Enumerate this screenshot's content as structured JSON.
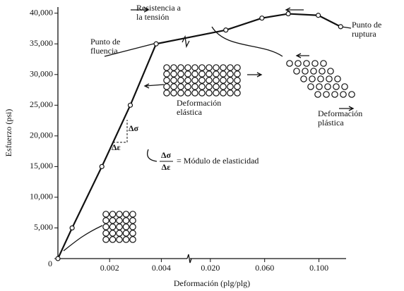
{
  "chart_data": {
    "type": "line",
    "y_label": "Esfuerzo (psi)",
    "x_label": "Deformación (plg/plg)",
    "ylim": [
      0,
      41000
    ],
    "yticks": [
      0,
      {
        "value": 5000,
        "label": "5,000"
      },
      {
        "value": 10000,
        "label": "10,000"
      },
      {
        "value": 15000,
        "label": "15,000"
      },
      {
        "value": 20000,
        "label": "20,000"
      },
      {
        "value": 25000,
        "label": "25,000"
      },
      {
        "value": 30000,
        "label": "30,000"
      },
      {
        "value": 35000,
        "label": "35,000"
      },
      {
        "value": 40000,
        "label": "40,000"
      }
    ],
    "x_segments": [
      {
        "xlim": [
          0,
          0.005
        ],
        "xticks": [
          0.002,
          0.004
        ]
      },
      {
        "xlim": [
          0.005,
          0.12
        ],
        "xticks": [
          {
            "value": 0.02,
            "label": "0.020"
          },
          {
            "value": 0.06,
            "label": "0.060"
          },
          {
            "value": 0.1,
            "label": "0.100"
          }
        ]
      }
    ],
    "origin_label": "0",
    "series": [
      {
        "color": "#111111",
        "x": [
          0,
          0.00055,
          0.0017,
          0.0028,
          0.0038,
          0.0314,
          0.058,
          0.0774,
          0.0995,
          0.116
        ],
        "values": [
          0,
          5000,
          15000,
          25000,
          35000,
          37250,
          39200,
          39900,
          39650,
          37800
        ]
      }
    ],
    "annotations": [
      {
        "lines": [
          "Resistencia a",
          "la tensión"
        ]
      },
      {
        "lines": [
          "Punto de",
          "fluencia"
        ]
      },
      {
        "lines": [
          "Punto de",
          "ruptura"
        ]
      },
      {
        "lines": [
          "Deformación",
          "elástica"
        ]
      },
      {
        "lines": [
          "Deformación",
          "plástica"
        ]
      },
      {
        "lines": [
          "Δσ"
        ]
      },
      {
        "lines": [
          "Δε"
        ]
      },
      {
        "lines": [
          "Δσ",
          "Δε",
          "= Módulo de elasticidad"
        ]
      }
    ]
  }
}
